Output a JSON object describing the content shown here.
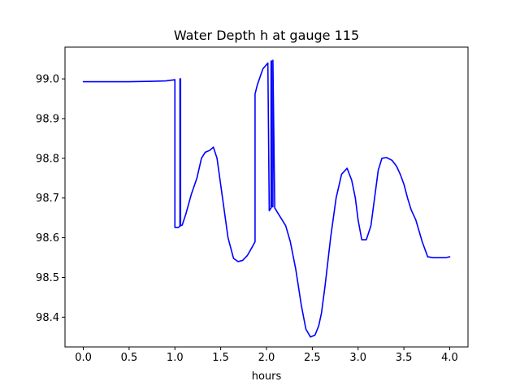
{
  "chart_data": {
    "type": "line",
    "title": "Water Depth h at gauge 115",
    "xlabel": "hours",
    "ylabel": "",
    "xlim": [
      -0.2,
      4.2
    ],
    "ylim": [
      98.325,
      99.08
    ],
    "xticks": [
      0.0,
      0.5,
      1.0,
      1.5,
      2.0,
      2.5,
      3.0,
      3.5,
      4.0
    ],
    "xtick_labels": [
      "0.0",
      "0.5",
      "1.0",
      "1.5",
      "2.0",
      "2.5",
      "3.0",
      "3.5",
      "4.0"
    ],
    "yticks": [
      98.4,
      98.5,
      98.6,
      98.7,
      98.8,
      98.9,
      99.0
    ],
    "ytick_labels": [
      "98.4",
      "98.5",
      "98.6",
      "98.7",
      "98.8",
      "98.9",
      "99.0"
    ],
    "grid": false,
    "line_color": "#0000ff",
    "series": [
      {
        "x": [
          0.0,
          0.25,
          0.5,
          0.75,
          0.9,
          0.97,
          1.0,
          1.0,
          1.04,
          1.055,
          1.055,
          1.062,
          1.062,
          1.08,
          1.12,
          1.18,
          1.24,
          1.29,
          1.33,
          1.38,
          1.42,
          1.46,
          1.52,
          1.58,
          1.64,
          1.69,
          1.74,
          1.79,
          1.84,
          1.875,
          1.875,
          1.9,
          1.96,
          2.015,
          2.03,
          2.03,
          2.05,
          2.05,
          2.055,
          2.055,
          2.07,
          2.07,
          2.09,
          2.13,
          2.17,
          2.21,
          2.26,
          2.32,
          2.38,
          2.43,
          2.48,
          2.53,
          2.57,
          2.6,
          2.64,
          2.7,
          2.76,
          2.82,
          2.88,
          2.93,
          2.97,
          3.0,
          3.04,
          3.09,
          3.14,
          3.18,
          3.22,
          3.26,
          3.31,
          3.37,
          3.42,
          3.46,
          3.5,
          3.54,
          3.58,
          3.63,
          3.7,
          3.76,
          3.82,
          3.87,
          3.92,
          3.96,
          4.0
        ],
        "y": [
          98.993,
          98.993,
          98.993,
          98.994,
          98.995,
          98.997,
          98.998,
          98.626,
          98.626,
          98.63,
          99.0,
          99.0,
          98.63,
          98.632,
          98.66,
          98.71,
          98.75,
          98.8,
          98.815,
          98.82,
          98.828,
          98.8,
          98.7,
          98.6,
          98.548,
          98.54,
          98.543,
          98.555,
          98.575,
          98.59,
          98.962,
          98.985,
          99.025,
          99.04,
          98.668,
          98.668,
          98.675,
          99.045,
          99.045,
          98.678,
          98.678,
          99.047,
          98.675,
          98.66,
          98.645,
          98.63,
          98.59,
          98.52,
          98.43,
          98.37,
          98.35,
          98.355,
          98.378,
          98.41,
          98.48,
          98.6,
          98.7,
          98.76,
          98.775,
          98.745,
          98.7,
          98.645,
          98.595,
          98.595,
          98.63,
          98.7,
          98.77,
          98.8,
          98.802,
          98.795,
          98.78,
          98.76,
          98.735,
          98.7,
          98.67,
          98.645,
          98.59,
          98.552,
          98.55,
          98.55,
          98.55,
          98.55,
          98.552
        ]
      }
    ]
  }
}
